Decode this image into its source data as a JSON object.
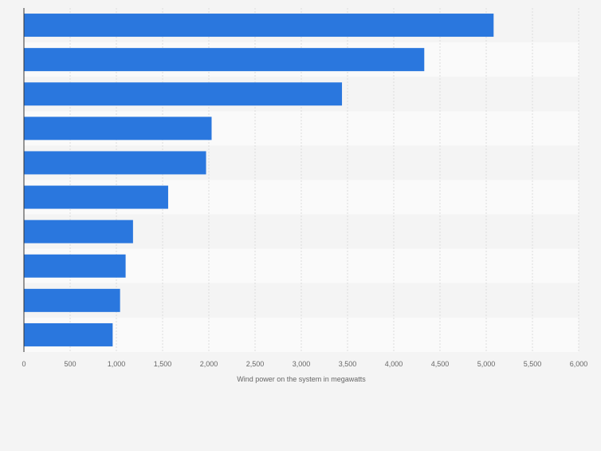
{
  "chart_data": {
    "type": "bar",
    "orientation": "horizontal",
    "categories": [
      "",
      "",
      "",
      "",
      "",
      "",
      "",
      "",
      "",
      ""
    ],
    "values": [
      5080,
      4330,
      3440,
      2030,
      1970,
      1560,
      1180,
      1100,
      1040,
      960
    ],
    "xlabel": "Wind power on the system in megawatts",
    "xlim": [
      0,
      6000
    ],
    "xticks": [
      0,
      500,
      1000,
      1500,
      2000,
      2500,
      3000,
      3500,
      4000,
      4500,
      5000,
      5500,
      6000
    ],
    "xtick_labels": [
      "0",
      "500",
      "1,000",
      "1,500",
      "2,000",
      "2,500",
      "3,000",
      "3,500",
      "4,000",
      "4,500",
      "5,000",
      "5,500",
      "6,000"
    ],
    "bar_color": "#2a77de",
    "grid": true,
    "legend": "none"
  }
}
